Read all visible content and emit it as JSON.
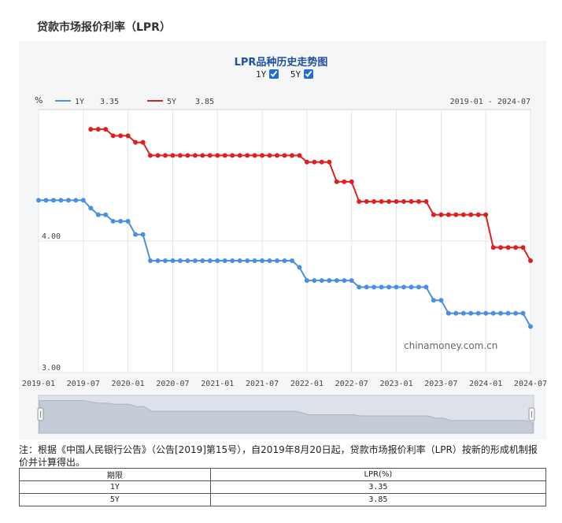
{
  "page_title": "贷款市场报价利率（LPR）",
  "chart_data": {
    "type": "line",
    "title": "LPR品种历史走势图",
    "ylabel": "%",
    "date_range_label": "2019-01 - 2024-07",
    "watermark": "chinamoney.com.cn",
    "ylim": [
      3.0,
      5.0
    ],
    "y_tick_labels": [
      "4.00",
      "3.00"
    ],
    "y_ticks": [
      4.0,
      3.0
    ],
    "x_tick_labels": [
      "2019-01",
      "2019-07",
      "2020-01",
      "2020-07",
      "2021-01",
      "2021-07",
      "2022-01",
      "2022-07",
      "2023-01",
      "2023-07",
      "2024-01",
      "2024-07"
    ],
    "grid": true,
    "legend_position": "top-left",
    "series": [
      {
        "name": "1Y",
        "latest": "3.35",
        "color": "#4a90e2",
        "values": [
          {
            "x": "2019-01",
            "y": 4.31
          },
          {
            "x": "2019-02",
            "y": 4.31
          },
          {
            "x": "2019-03",
            "y": 4.31
          },
          {
            "x": "2019-04",
            "y": 4.31
          },
          {
            "x": "2019-05",
            "y": 4.31
          },
          {
            "x": "2019-06",
            "y": 4.31
          },
          {
            "x": "2019-07",
            "y": 4.31
          },
          {
            "x": "2019-08",
            "y": 4.25
          },
          {
            "x": "2019-09",
            "y": 4.2
          },
          {
            "x": "2019-10",
            "y": 4.2
          },
          {
            "x": "2019-11",
            "y": 4.15
          },
          {
            "x": "2019-12",
            "y": 4.15
          },
          {
            "x": "2020-01",
            "y": 4.15
          },
          {
            "x": "2020-02",
            "y": 4.05
          },
          {
            "x": "2020-03",
            "y": 4.05
          },
          {
            "x": "2020-04",
            "y": 3.85
          },
          {
            "x": "2020-05",
            "y": 3.85
          },
          {
            "x": "2020-06",
            "y": 3.85
          },
          {
            "x": "2020-07",
            "y": 3.85
          },
          {
            "x": "2020-08",
            "y": 3.85
          },
          {
            "x": "2020-09",
            "y": 3.85
          },
          {
            "x": "2020-10",
            "y": 3.85
          },
          {
            "x": "2020-11",
            "y": 3.85
          },
          {
            "x": "2020-12",
            "y": 3.85
          },
          {
            "x": "2021-01",
            "y": 3.85
          },
          {
            "x": "2021-02",
            "y": 3.85
          },
          {
            "x": "2021-03",
            "y": 3.85
          },
          {
            "x": "2021-04",
            "y": 3.85
          },
          {
            "x": "2021-05",
            "y": 3.85
          },
          {
            "x": "2021-06",
            "y": 3.85
          },
          {
            "x": "2021-07",
            "y": 3.85
          },
          {
            "x": "2021-08",
            "y": 3.85
          },
          {
            "x": "2021-09",
            "y": 3.85
          },
          {
            "x": "2021-10",
            "y": 3.85
          },
          {
            "x": "2021-11",
            "y": 3.85
          },
          {
            "x": "2021-12",
            "y": 3.8
          },
          {
            "x": "2022-01",
            "y": 3.7
          },
          {
            "x": "2022-02",
            "y": 3.7
          },
          {
            "x": "2022-03",
            "y": 3.7
          },
          {
            "x": "2022-04",
            "y": 3.7
          },
          {
            "x": "2022-05",
            "y": 3.7
          },
          {
            "x": "2022-06",
            "y": 3.7
          },
          {
            "x": "2022-07",
            "y": 3.7
          },
          {
            "x": "2022-08",
            "y": 3.65
          },
          {
            "x": "2022-09",
            "y": 3.65
          },
          {
            "x": "2022-10",
            "y": 3.65
          },
          {
            "x": "2022-11",
            "y": 3.65
          },
          {
            "x": "2022-12",
            "y": 3.65
          },
          {
            "x": "2023-01",
            "y": 3.65
          },
          {
            "x": "2023-02",
            "y": 3.65
          },
          {
            "x": "2023-03",
            "y": 3.65
          },
          {
            "x": "2023-04",
            "y": 3.65
          },
          {
            "x": "2023-05",
            "y": 3.65
          },
          {
            "x": "2023-06",
            "y": 3.55
          },
          {
            "x": "2023-07",
            "y": 3.55
          },
          {
            "x": "2023-08",
            "y": 3.45
          },
          {
            "x": "2023-09",
            "y": 3.45
          },
          {
            "x": "2023-10",
            "y": 3.45
          },
          {
            "x": "2023-11",
            "y": 3.45
          },
          {
            "x": "2023-12",
            "y": 3.45
          },
          {
            "x": "2024-01",
            "y": 3.45
          },
          {
            "x": "2024-02",
            "y": 3.45
          },
          {
            "x": "2024-03",
            "y": 3.45
          },
          {
            "x": "2024-04",
            "y": 3.45
          },
          {
            "x": "2024-05",
            "y": 3.45
          },
          {
            "x": "2024-06",
            "y": 3.45
          },
          {
            "x": "2024-07",
            "y": 3.35
          }
        ]
      },
      {
        "name": "5Y",
        "latest": "3.85",
        "color": "#e02020",
        "values": [
          {
            "x": "2019-08",
            "y": 4.85
          },
          {
            "x": "2019-09",
            "y": 4.85
          },
          {
            "x": "2019-10",
            "y": 4.85
          },
          {
            "x": "2019-11",
            "y": 4.8
          },
          {
            "x": "2019-12",
            "y": 4.8
          },
          {
            "x": "2020-01",
            "y": 4.8
          },
          {
            "x": "2020-02",
            "y": 4.75
          },
          {
            "x": "2020-03",
            "y": 4.75
          },
          {
            "x": "2020-04",
            "y": 4.65
          },
          {
            "x": "2020-05",
            "y": 4.65
          },
          {
            "x": "2020-06",
            "y": 4.65
          },
          {
            "x": "2020-07",
            "y": 4.65
          },
          {
            "x": "2020-08",
            "y": 4.65
          },
          {
            "x": "2020-09",
            "y": 4.65
          },
          {
            "x": "2020-10",
            "y": 4.65
          },
          {
            "x": "2020-11",
            "y": 4.65
          },
          {
            "x": "2020-12",
            "y": 4.65
          },
          {
            "x": "2021-01",
            "y": 4.65
          },
          {
            "x": "2021-02",
            "y": 4.65
          },
          {
            "x": "2021-03",
            "y": 4.65
          },
          {
            "x": "2021-04",
            "y": 4.65
          },
          {
            "x": "2021-05",
            "y": 4.65
          },
          {
            "x": "2021-06",
            "y": 4.65
          },
          {
            "x": "2021-07",
            "y": 4.65
          },
          {
            "x": "2021-08",
            "y": 4.65
          },
          {
            "x": "2021-09",
            "y": 4.65
          },
          {
            "x": "2021-10",
            "y": 4.65
          },
          {
            "x": "2021-11",
            "y": 4.65
          },
          {
            "x": "2021-12",
            "y": 4.65
          },
          {
            "x": "2022-01",
            "y": 4.6
          },
          {
            "x": "2022-02",
            "y": 4.6
          },
          {
            "x": "2022-03",
            "y": 4.6
          },
          {
            "x": "2022-04",
            "y": 4.6
          },
          {
            "x": "2022-05",
            "y": 4.45
          },
          {
            "x": "2022-06",
            "y": 4.45
          },
          {
            "x": "2022-07",
            "y": 4.45
          },
          {
            "x": "2022-08",
            "y": 4.3
          },
          {
            "x": "2022-09",
            "y": 4.3
          },
          {
            "x": "2022-10",
            "y": 4.3
          },
          {
            "x": "2022-11",
            "y": 4.3
          },
          {
            "x": "2022-12",
            "y": 4.3
          },
          {
            "x": "2023-01",
            "y": 4.3
          },
          {
            "x": "2023-02",
            "y": 4.3
          },
          {
            "x": "2023-03",
            "y": 4.3
          },
          {
            "x": "2023-04",
            "y": 4.3
          },
          {
            "x": "2023-05",
            "y": 4.3
          },
          {
            "x": "2023-06",
            "y": 4.2
          },
          {
            "x": "2023-07",
            "y": 4.2
          },
          {
            "x": "2023-08",
            "y": 4.2
          },
          {
            "x": "2023-09",
            "y": 4.2
          },
          {
            "x": "2023-10",
            "y": 4.2
          },
          {
            "x": "2023-11",
            "y": 4.2
          },
          {
            "x": "2023-12",
            "y": 4.2
          },
          {
            "x": "2024-01",
            "y": 4.2
          },
          {
            "x": "2024-02",
            "y": 3.95
          },
          {
            "x": "2024-03",
            "y": 3.95
          },
          {
            "x": "2024-04",
            "y": 3.95
          },
          {
            "x": "2024-05",
            "y": 3.95
          },
          {
            "x": "2024-06",
            "y": 3.95
          },
          {
            "x": "2024-07",
            "y": 3.85
          }
        ]
      }
    ]
  },
  "toggles": [
    {
      "label": "1Y",
      "checked": true
    },
    {
      "label": "5Y",
      "checked": true
    }
  ],
  "note": "注：根据《中国人民银行公告》（公告[2019]第15号），自2019年8月20日起，贷款市场报价利率（LPR）按新的形成机制报价并计算得出。",
  "table": {
    "headers": [
      "期限",
      "LPR(%)"
    ],
    "rows": [
      [
        "1Y",
        "3.35"
      ],
      [
        "5Y",
        "3.85"
      ]
    ]
  }
}
